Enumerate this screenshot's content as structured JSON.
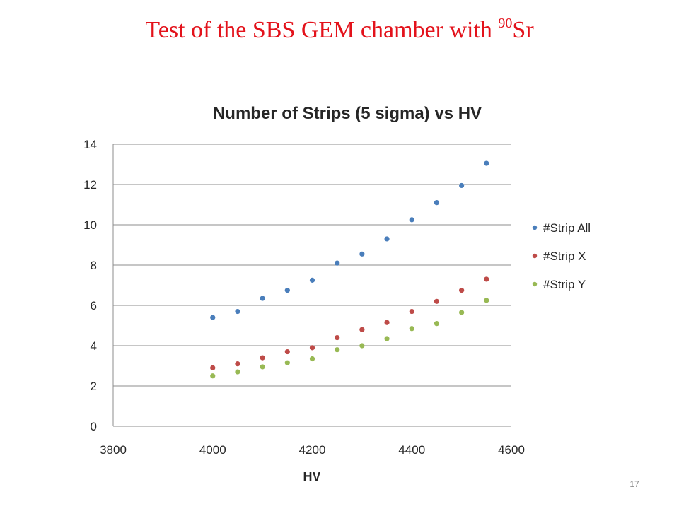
{
  "slide": {
    "title_main": "Test of the SBS GEM chamber with ",
    "title_sup": "90",
    "title_tail": "Sr",
    "page_number": "17"
  },
  "chart_data": {
    "type": "scatter",
    "title": "Number of Strips (5 sigma) vs HV",
    "xlabel": "HV",
    "ylabel": "",
    "xlim": [
      3800,
      4600
    ],
    "ylim": [
      0,
      14
    ],
    "xticks": [
      3800,
      4000,
      4200,
      4400,
      4600
    ],
    "yticks": [
      0,
      2,
      4,
      6,
      8,
      10,
      12,
      14
    ],
    "grid": "horizontal",
    "legend_position": "right",
    "x": [
      4000,
      4050,
      4100,
      4150,
      4200,
      4250,
      4300,
      4350,
      4400,
      4450,
      4500,
      4550
    ],
    "series": [
      {
        "name": "#Strip All",
        "color": "#4a7ebb",
        "values": [
          5.4,
          5.7,
          6.35,
          6.75,
          7.25,
          8.1,
          8.55,
          9.3,
          10.25,
          11.1,
          11.95,
          13.05
        ]
      },
      {
        "name": "#Strip X",
        "color": "#be4b48",
        "values": [
          2.9,
          3.1,
          3.4,
          3.7,
          3.9,
          4.4,
          4.8,
          5.15,
          5.7,
          6.2,
          6.75,
          7.3
        ]
      },
      {
        "name": "#Strip Y",
        "color": "#98b954",
        "values": [
          2.5,
          2.7,
          2.95,
          3.15,
          3.35,
          3.8,
          4.0,
          4.35,
          4.85,
          5.1,
          5.65,
          6.25
        ]
      }
    ]
  }
}
